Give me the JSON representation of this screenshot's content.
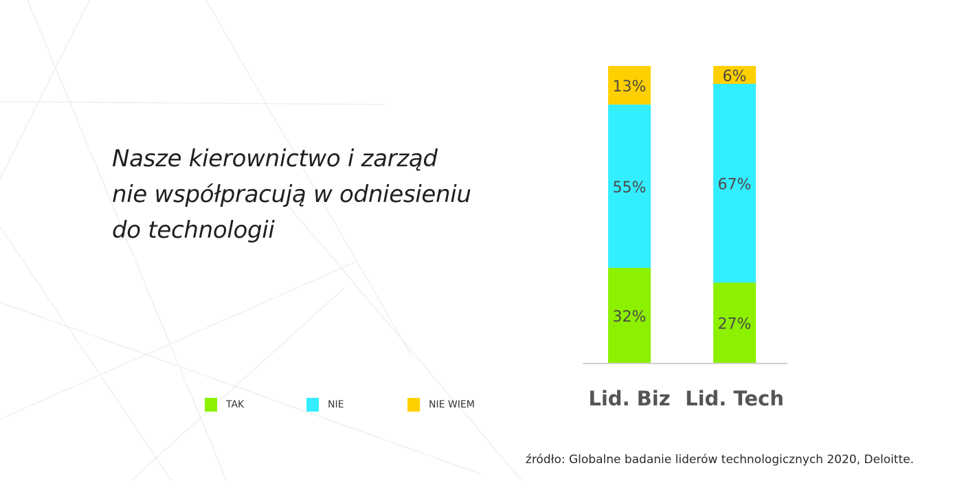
{
  "title_lines": [
    "Nasze kierownictwo i zarząd",
    "nie współpracują w odniesieniu",
    "do technologii"
  ],
  "legend": [
    {
      "label": "TAK",
      "color": "#8cf000"
    },
    {
      "label": "NIE",
      "color": "#33eeff"
    },
    {
      "label": "NIE WIEM",
      "color": "#ffd000"
    }
  ],
  "source": "źródło: Globalne badanie liderów technologicznych 2020, Deloitte.",
  "chart_data": {
    "type": "bar",
    "stacked": true,
    "categories": [
      "Lid. Biz",
      "Lid. Tech"
    ],
    "series": [
      {
        "name": "TAK",
        "color": "#8cf000",
        "values": [
          32,
          27
        ],
        "labels": [
          "32%",
          "27%"
        ]
      },
      {
        "name": "NIE",
        "color": "#33eeff",
        "values": [
          55,
          67
        ],
        "labels": [
          "55%",
          "67%"
        ]
      },
      {
        "name": "NIE WIEM",
        "color": "#ffd000",
        "values": [
          13,
          6
        ],
        "labels": [
          "13%",
          "6%"
        ]
      }
    ],
    "ylim": [
      0,
      100
    ],
    "grid": false,
    "legend_position": "bottom-left"
  }
}
